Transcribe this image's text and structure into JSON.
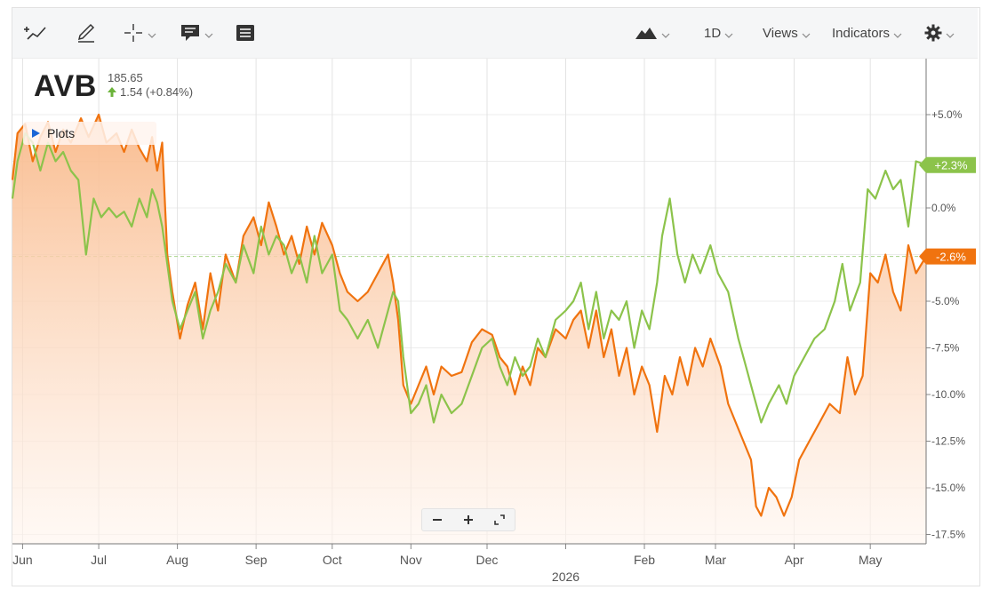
{
  "toolbar": {
    "timeframe_label": "1D",
    "views_label": "Views",
    "indicators_label": "Indicators",
    "icons": [
      "add-drawing-icon",
      "pencil-icon",
      "crosshair-icon",
      "annotation-icon",
      "list-icon",
      "mountain-chart-icon",
      "gear-icon"
    ]
  },
  "symbol": {
    "ticker": "AVB",
    "price": "185.65",
    "change": "1.54 (+0.84%)"
  },
  "plots_label": "Plots",
  "zoom": {
    "minus": "−",
    "plus": "+"
  },
  "colors": {
    "primary": "#f0730f",
    "compare": "#8cc34b",
    "fill_top": "#f9b98a",
    "fill_bottom": "#fff5ee",
    "up": "#6bb33a"
  },
  "chart_data": {
    "type": "line",
    "y_unit": "percent change",
    "ylim": [
      -18,
      8
    ],
    "y_ticks": [
      5.0,
      2.5,
      0.0,
      -2.5,
      -5.0,
      -7.5,
      -10.0,
      -12.5,
      -15.0,
      -17.5
    ],
    "y_tick_labels": [
      "+5.0%",
      "+2.5%",
      "0.0%",
      "-2.5%",
      "-5.0%",
      "-7.5%",
      "-10.0%",
      "-12.5%",
      "-15.0%",
      "-17.5%"
    ],
    "x_range": [
      "2025-05-28",
      "2026-05-23"
    ],
    "x_ticks": [
      {
        "date": "2025-06-01",
        "label": "Jun"
      },
      {
        "date": "2025-07-01",
        "label": "Jul"
      },
      {
        "date": "2025-08-01",
        "label": "Aug"
      },
      {
        "date": "2025-09-01",
        "label": "Sep"
      },
      {
        "date": "2025-10-01",
        "label": "Oct"
      },
      {
        "date": "2025-11-01",
        "label": "Nov"
      },
      {
        "date": "2025-12-01",
        "label": "Dec"
      },
      {
        "date": "2026-01-01",
        "label": "2026"
      },
      {
        "date": "2026-02-01",
        "label": "Feb"
      },
      {
        "date": "2026-03-01",
        "label": "Mar"
      },
      {
        "date": "2026-04-01",
        "label": "Apr"
      },
      {
        "date": "2026-05-01",
        "label": "May"
      }
    ],
    "grid": true,
    "series": [
      {
        "name": "",
        "color": "#f0730f",
        "filled": true,
        "last_label": "-2.6%",
        "points": [
          [
            "2025-05-28",
            1.5
          ],
          [
            "2025-05-30",
            4.0
          ],
          [
            "2025-06-02",
            4.5
          ],
          [
            "2025-06-05",
            2.5
          ],
          [
            "2025-06-08",
            3.8
          ],
          [
            "2025-06-11",
            4.6
          ],
          [
            "2025-06-14",
            3.0
          ],
          [
            "2025-06-17",
            4.2
          ],
          [
            "2025-06-20",
            3.5
          ],
          [
            "2025-06-24",
            4.8
          ],
          [
            "2025-06-27",
            3.8
          ],
          [
            "2025-07-01",
            5.0
          ],
          [
            "2025-07-04",
            3.5
          ],
          [
            "2025-07-08",
            4.0
          ],
          [
            "2025-07-11",
            3.0
          ],
          [
            "2025-07-14",
            4.2
          ],
          [
            "2025-07-17",
            3.2
          ],
          [
            "2025-07-20",
            2.5
          ],
          [
            "2025-07-22",
            3.8
          ],
          [
            "2025-07-24",
            2.0
          ],
          [
            "2025-07-26",
            3.5
          ],
          [
            "2025-07-28",
            -2.5
          ],
          [
            "2025-07-30",
            -4.5
          ],
          [
            "2025-08-02",
            -7.0
          ],
          [
            "2025-08-05",
            -5.2
          ],
          [
            "2025-08-08",
            -4.0
          ],
          [
            "2025-08-11",
            -6.5
          ],
          [
            "2025-08-14",
            -3.5
          ],
          [
            "2025-08-17",
            -5.5
          ],
          [
            "2025-08-20",
            -2.5
          ],
          [
            "2025-08-24",
            -4.0
          ],
          [
            "2025-08-27",
            -1.5
          ],
          [
            "2025-08-31",
            -0.5
          ],
          [
            "2025-09-03",
            -2.0
          ],
          [
            "2025-09-06",
            0.3
          ],
          [
            "2025-09-09",
            -1.0
          ],
          [
            "2025-09-12",
            -2.5
          ],
          [
            "2025-09-15",
            -1.5
          ],
          [
            "2025-09-18",
            -3.0
          ],
          [
            "2025-09-21",
            -1.0
          ],
          [
            "2025-09-24",
            -2.5
          ],
          [
            "2025-09-27",
            -0.8
          ],
          [
            "2025-10-01",
            -2.0
          ],
          [
            "2025-10-04",
            -3.5
          ],
          [
            "2025-10-07",
            -4.5
          ],
          [
            "2025-10-11",
            -5.0
          ],
          [
            "2025-10-15",
            -4.5
          ],
          [
            "2025-10-19",
            -3.5
          ],
          [
            "2025-10-23",
            -2.5
          ],
          [
            "2025-10-25",
            -4.0
          ],
          [
            "2025-10-27",
            -6.0
          ],
          [
            "2025-10-29",
            -9.5
          ],
          [
            "2025-11-01",
            -10.5
          ],
          [
            "2025-11-04",
            -9.5
          ],
          [
            "2025-11-07",
            -8.5
          ],
          [
            "2025-11-10",
            -10.0
          ],
          [
            "2025-11-13",
            -8.5
          ],
          [
            "2025-11-17",
            -9.0
          ],
          [
            "2025-11-21",
            -8.8
          ],
          [
            "2025-11-25",
            -7.2
          ],
          [
            "2025-11-29",
            -6.5
          ],
          [
            "2025-12-03",
            -6.8
          ],
          [
            "2025-12-06",
            -8.0
          ],
          [
            "2025-12-09",
            -8.5
          ],
          [
            "2025-12-12",
            -10.0
          ],
          [
            "2025-12-15",
            -8.5
          ],
          [
            "2025-12-18",
            -9.5
          ],
          [
            "2025-12-21",
            -7.5
          ],
          [
            "2025-12-24",
            -8.0
          ],
          [
            "2025-12-28",
            -6.5
          ],
          [
            "2026-01-01",
            -7.0
          ],
          [
            "2026-01-04",
            -6.0
          ],
          [
            "2026-01-07",
            -5.5
          ],
          [
            "2026-01-10",
            -7.5
          ],
          [
            "2026-01-13",
            -5.5
          ],
          [
            "2026-01-16",
            -8.0
          ],
          [
            "2026-01-19",
            -6.5
          ],
          [
            "2026-01-22",
            -9.0
          ],
          [
            "2026-01-25",
            -7.5
          ],
          [
            "2026-01-28",
            -10.0
          ],
          [
            "2026-01-31",
            -8.5
          ],
          [
            "2026-02-03",
            -9.5
          ],
          [
            "2026-02-06",
            -12.0
          ],
          [
            "2026-02-09",
            -9.0
          ],
          [
            "2026-02-12",
            -10.0
          ],
          [
            "2026-02-15",
            -8.0
          ],
          [
            "2026-02-18",
            -9.5
          ],
          [
            "2026-02-21",
            -7.5
          ],
          [
            "2026-02-24",
            -8.5
          ],
          [
            "2026-02-27",
            -7.0
          ],
          [
            "2026-03-03",
            -8.5
          ],
          [
            "2026-03-06",
            -10.5
          ],
          [
            "2026-03-09",
            -11.5
          ],
          [
            "2026-03-12",
            -12.5
          ],
          [
            "2026-03-15",
            -13.5
          ],
          [
            "2026-03-17",
            -16.0
          ],
          [
            "2026-03-19",
            -16.5
          ],
          [
            "2026-03-22",
            -15.0
          ],
          [
            "2026-03-25",
            -15.5
          ],
          [
            "2026-03-28",
            -16.5
          ],
          [
            "2026-03-31",
            -15.5
          ],
          [
            "2026-04-03",
            -13.5
          ],
          [
            "2026-04-07",
            -12.5
          ],
          [
            "2026-04-11",
            -11.5
          ],
          [
            "2026-04-15",
            -10.5
          ],
          [
            "2026-04-19",
            -11.0
          ],
          [
            "2026-04-22",
            -8.0
          ],
          [
            "2026-04-25",
            -10.0
          ],
          [
            "2026-04-28",
            -9.0
          ],
          [
            "2026-05-01",
            -3.5
          ],
          [
            "2026-05-04",
            -4.0
          ],
          [
            "2026-05-07",
            -2.5
          ],
          [
            "2026-05-10",
            -4.5
          ],
          [
            "2026-05-13",
            -5.5
          ],
          [
            "2026-05-16",
            -2.0
          ],
          [
            "2026-05-19",
            -3.5
          ],
          [
            "2026-05-23",
            -2.6
          ]
        ]
      },
      {
        "name": "",
        "color": "#8cc34b",
        "filled": false,
        "last_label": "+2.3%",
        "points": [
          [
            "2025-05-28",
            0.5
          ],
          [
            "2025-05-30",
            2.5
          ],
          [
            "2025-06-02",
            4.0
          ],
          [
            "2025-06-05",
            3.5
          ],
          [
            "2025-06-08",
            2.0
          ],
          [
            "2025-06-11",
            3.5
          ],
          [
            "2025-06-14",
            2.5
          ],
          [
            "2025-06-17",
            3.0
          ],
          [
            "2025-06-20",
            2.0
          ],
          [
            "2025-06-23",
            1.5
          ],
          [
            "2025-06-26",
            -2.5
          ],
          [
            "2025-06-29",
            0.5
          ],
          [
            "2025-07-02",
            -0.5
          ],
          [
            "2025-07-05",
            0.0
          ],
          [
            "2025-07-08",
            -0.5
          ],
          [
            "2025-07-11",
            -0.2
          ],
          [
            "2025-07-14",
            -1.0
          ],
          [
            "2025-07-17",
            0.5
          ],
          [
            "2025-07-20",
            -0.5
          ],
          [
            "2025-07-22",
            1.0
          ],
          [
            "2025-07-24",
            0.3
          ],
          [
            "2025-07-26",
            -1.0
          ],
          [
            "2025-07-28",
            -3.0
          ],
          [
            "2025-07-30",
            -5.0
          ],
          [
            "2025-08-02",
            -6.5
          ],
          [
            "2025-08-05",
            -5.5
          ],
          [
            "2025-08-08",
            -4.5
          ],
          [
            "2025-08-11",
            -7.0
          ],
          [
            "2025-08-14",
            -5.5
          ],
          [
            "2025-08-17",
            -4.5
          ],
          [
            "2025-08-20",
            -3.0
          ],
          [
            "2025-08-24",
            -4.0
          ],
          [
            "2025-08-27",
            -2.0
          ],
          [
            "2025-08-31",
            -3.5
          ],
          [
            "2025-09-03",
            -1.0
          ],
          [
            "2025-09-06",
            -2.5
          ],
          [
            "2025-09-09",
            -1.5
          ],
          [
            "2025-09-12",
            -2.0
          ],
          [
            "2025-09-15",
            -3.5
          ],
          [
            "2025-09-18",
            -2.5
          ],
          [
            "2025-09-21",
            -4.0
          ],
          [
            "2025-09-24",
            -1.5
          ],
          [
            "2025-09-27",
            -3.5
          ],
          [
            "2025-10-01",
            -2.5
          ],
          [
            "2025-10-04",
            -5.5
          ],
          [
            "2025-10-07",
            -6.0
          ],
          [
            "2025-10-11",
            -7.0
          ],
          [
            "2025-10-15",
            -6.0
          ],
          [
            "2025-10-19",
            -7.5
          ],
          [
            "2025-10-23",
            -5.5
          ],
          [
            "2025-10-25",
            -4.5
          ],
          [
            "2025-10-27",
            -5.0
          ],
          [
            "2025-10-29",
            -8.0
          ],
          [
            "2025-11-01",
            -11.0
          ],
          [
            "2025-11-04",
            -10.5
          ],
          [
            "2025-11-07",
            -9.5
          ],
          [
            "2025-11-10",
            -11.5
          ],
          [
            "2025-11-13",
            -10.0
          ],
          [
            "2025-11-17",
            -11.0
          ],
          [
            "2025-11-21",
            -10.5
          ],
          [
            "2025-11-25",
            -9.0
          ],
          [
            "2025-11-29",
            -7.5
          ],
          [
            "2025-12-03",
            -7.0
          ],
          [
            "2025-12-06",
            -8.5
          ],
          [
            "2025-12-09",
            -9.5
          ],
          [
            "2025-12-12",
            -8.0
          ],
          [
            "2025-12-15",
            -9.0
          ],
          [
            "2025-12-18",
            -8.5
          ],
          [
            "2025-12-21",
            -7.0
          ],
          [
            "2025-12-24",
            -8.0
          ],
          [
            "2025-12-28",
            -6.0
          ],
          [
            "2026-01-01",
            -5.5
          ],
          [
            "2026-01-04",
            -5.0
          ],
          [
            "2026-01-07",
            -4.0
          ],
          [
            "2026-01-10",
            -6.5
          ],
          [
            "2026-01-13",
            -4.5
          ],
          [
            "2026-01-16",
            -7.0
          ],
          [
            "2026-01-19",
            -5.5
          ],
          [
            "2026-01-22",
            -6.0
          ],
          [
            "2026-01-25",
            -5.0
          ],
          [
            "2026-01-28",
            -7.5
          ],
          [
            "2026-01-31",
            -5.5
          ],
          [
            "2026-02-03",
            -6.5
          ],
          [
            "2026-02-06",
            -4.0
          ],
          [
            "2026-02-08",
            -1.5
          ],
          [
            "2026-02-11",
            0.5
          ],
          [
            "2026-02-14",
            -2.5
          ],
          [
            "2026-02-17",
            -4.0
          ],
          [
            "2026-02-20",
            -2.5
          ],
          [
            "2026-02-23",
            -3.5
          ],
          [
            "2026-02-27",
            -2.0
          ],
          [
            "2026-03-02",
            -3.5
          ],
          [
            "2026-03-06",
            -4.5
          ],
          [
            "2026-03-10",
            -7.0
          ],
          [
            "2026-03-13",
            -8.5
          ],
          [
            "2026-03-16",
            -10.0
          ],
          [
            "2026-03-19",
            -11.5
          ],
          [
            "2026-03-22",
            -10.5
          ],
          [
            "2026-03-26",
            -9.5
          ],
          [
            "2026-03-29",
            -10.5
          ],
          [
            "2026-04-01",
            -9.0
          ],
          [
            "2026-04-05",
            -8.0
          ],
          [
            "2026-04-09",
            -7.0
          ],
          [
            "2026-04-13",
            -6.5
          ],
          [
            "2026-04-17",
            -5.0
          ],
          [
            "2026-04-20",
            -3.0
          ],
          [
            "2026-04-23",
            -5.5
          ],
          [
            "2026-04-27",
            -4.0
          ],
          [
            "2026-04-30",
            1.0
          ],
          [
            "2026-05-03",
            0.5
          ],
          [
            "2026-05-07",
            2.0
          ],
          [
            "2026-05-10",
            1.0
          ],
          [
            "2026-05-13",
            1.5
          ],
          [
            "2026-05-16",
            -1.0
          ],
          [
            "2026-05-19",
            2.5
          ],
          [
            "2026-05-23",
            2.3
          ]
        ]
      }
    ],
    "reference_line": {
      "y": -2.6,
      "style": "dashed"
    }
  }
}
